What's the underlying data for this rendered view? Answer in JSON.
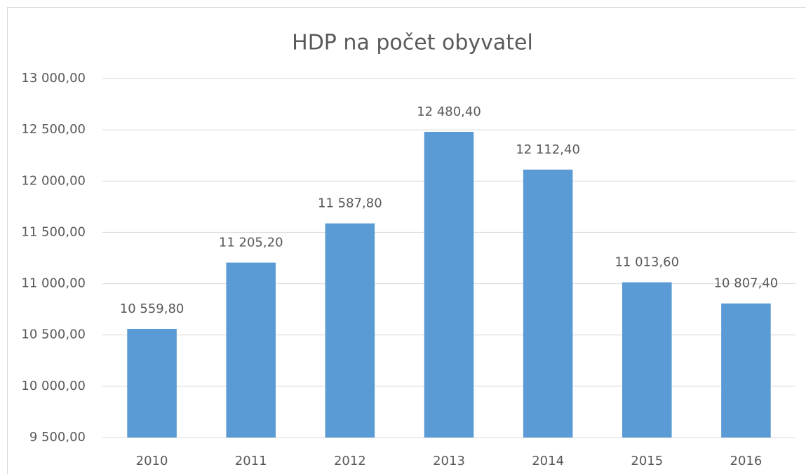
{
  "chart_data": {
    "type": "bar",
    "title": "HDP na počet obyvatel",
    "categories": [
      "2010",
      "2011",
      "2012",
      "2013",
      "2014",
      "2015",
      "2016"
    ],
    "values": [
      10559.8,
      11205.2,
      11587.8,
      12480.4,
      12112.4,
      11013.6,
      10807.4
    ],
    "value_labels": [
      "10 559,80",
      "11 205,20",
      "11 587,80",
      "12 480,40",
      "12 112,40",
      "11 013,60",
      "10 807,40"
    ],
    "color": "#5b9bd5",
    "ylim": [
      9500,
      13000
    ],
    "yticks": [
      {
        "value": 9500,
        "label": "9 500,00"
      },
      {
        "value": 10000,
        "label": "10 000,00"
      },
      {
        "value": 10500,
        "label": "10 500,00"
      },
      {
        "value": 11000,
        "label": "11 000,00"
      },
      {
        "value": 11500,
        "label": "11 500,00"
      },
      {
        "value": 12000,
        "label": "12 000,00"
      },
      {
        "value": 12500,
        "label": "12 500,00"
      },
      {
        "value": 13000,
        "label": "13 000,00"
      }
    ],
    "grid": true
  }
}
